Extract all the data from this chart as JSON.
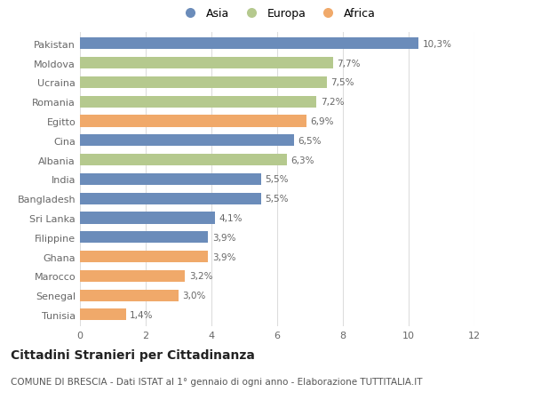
{
  "countries": [
    "Pakistan",
    "Moldova",
    "Ucraina",
    "Romania",
    "Egitto",
    "Cina",
    "Albania",
    "India",
    "Bangladesh",
    "Sri Lanka",
    "Filippine",
    "Ghana",
    "Marocco",
    "Senegal",
    "Tunisia"
  ],
  "values": [
    10.3,
    7.7,
    7.5,
    7.2,
    6.9,
    6.5,
    6.3,
    5.5,
    5.5,
    4.1,
    3.9,
    3.9,
    3.2,
    3.0,
    1.4
  ],
  "labels": [
    "10,3%",
    "7,7%",
    "7,5%",
    "7,2%",
    "6,9%",
    "6,5%",
    "6,3%",
    "5,5%",
    "5,5%",
    "4,1%",
    "3,9%",
    "3,9%",
    "3,2%",
    "3,0%",
    "1,4%"
  ],
  "continents": [
    "Asia",
    "Europa",
    "Europa",
    "Europa",
    "Africa",
    "Asia",
    "Europa",
    "Asia",
    "Asia",
    "Asia",
    "Asia",
    "Africa",
    "Africa",
    "Africa",
    "Africa"
  ],
  "colors": {
    "Asia": "#6b8cba",
    "Europa": "#b5c98e",
    "Africa": "#f0a96a"
  },
  "legend_labels": [
    "Asia",
    "Europa",
    "Africa"
  ],
  "xlim": [
    0,
    12
  ],
  "xticks": [
    0,
    2,
    4,
    6,
    8,
    10,
    12
  ],
  "title": "Cittadini Stranieri per Cittadinanza",
  "subtitle": "COMUNE DI BRESCIA - Dati ISTAT al 1° gennaio di ogni anno - Elaborazione TUTTITALIA.IT",
  "bg_color": "#ffffff",
  "grid_color": "#dddddd",
  "bar_height": 0.6,
  "label_fontsize": 7.5,
  "ytick_fontsize": 8.0,
  "xtick_fontsize": 8.0,
  "title_fontsize": 10,
  "subtitle_fontsize": 7.5,
  "legend_fontsize": 9
}
